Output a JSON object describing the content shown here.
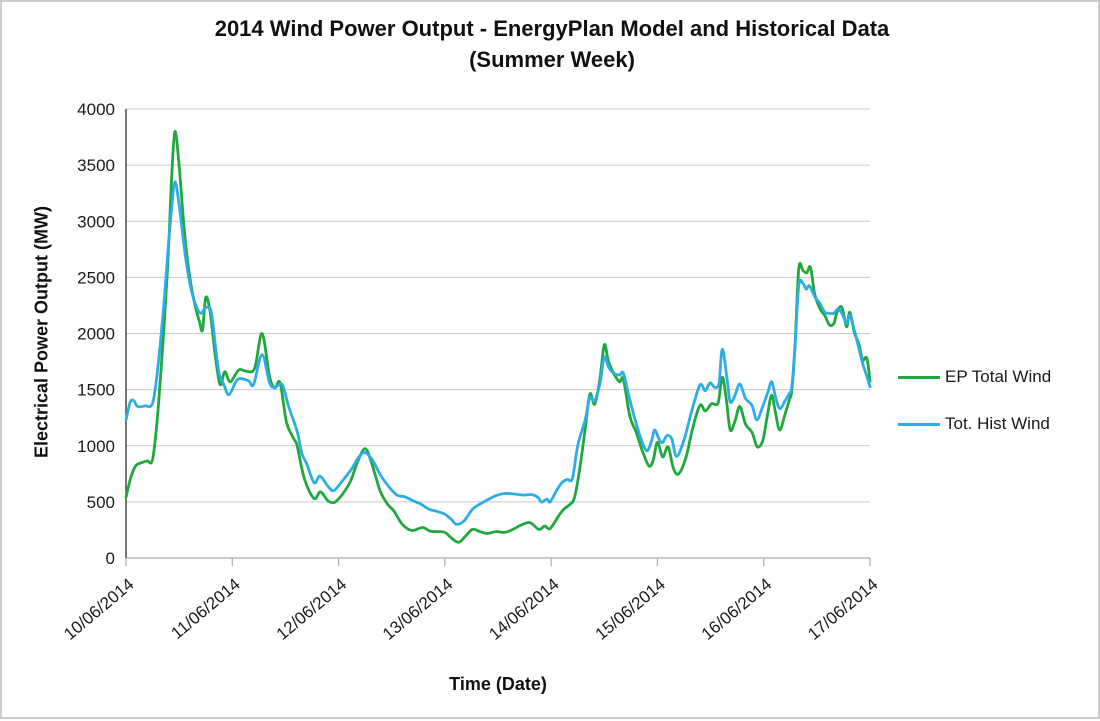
{
  "title": {
    "line1": "2014 Wind Power Output - EnergyPlan Model and Historical Data",
    "line2": "(Summer Week)"
  },
  "legend": [
    {
      "label": "EP Total Wind",
      "color": "#1FA83C"
    },
    {
      "label": "Tot. Hist Wind",
      "color": "#2EACE4"
    }
  ],
  "colors": {
    "gridline": "#C9C9C9",
    "x_axis_line": "#ADADAD",
    "y_axis_line": "#3d3d3d",
    "tick": "#ADADAD",
    "tick_label": "#1a1a1a"
  },
  "chart_data": {
    "type": "line",
    "title": "2014 Wind Power Output - EnergyPlan Model and Historical Data (Summer Week)",
    "xlabel": "Time (Date)",
    "ylabel": "Electrical Power Output (MW)",
    "ylim": [
      0,
      4000
    ],
    "ytick_step": 500,
    "ytick_labels": [
      "0",
      "500",
      "1000",
      "1500",
      "2000",
      "2500",
      "3000",
      "3500",
      "4000"
    ],
    "xlim_days": [
      0,
      7
    ],
    "xtick_labels": [
      "10/06/2014",
      "11/06/2014",
      "12/06/2014",
      "13/06/2014",
      "14/06/2014",
      "15/06/2014",
      "16/06/2014",
      "17/06/2014"
    ],
    "grid": "horizontal",
    "legend_position": "right",
    "series": [
      {
        "name": "EP Total Wind",
        "color": "#1FA83C",
        "points": [
          [
            0.0,
            540
          ],
          [
            0.04,
            700
          ],
          [
            0.09,
            820
          ],
          [
            0.15,
            850
          ],
          [
            0.2,
            865
          ],
          [
            0.25,
            880
          ],
          [
            0.3,
            1300
          ],
          [
            0.36,
            2100
          ],
          [
            0.4,
            2750
          ],
          [
            0.43,
            3400
          ],
          [
            0.46,
            3800
          ],
          [
            0.5,
            3500
          ],
          [
            0.55,
            2900
          ],
          [
            0.6,
            2500
          ],
          [
            0.65,
            2250
          ],
          [
            0.69,
            2110
          ],
          [
            0.72,
            2030
          ],
          [
            0.75,
            2320
          ],
          [
            0.79,
            2200
          ],
          [
            0.84,
            1800
          ],
          [
            0.885,
            1545
          ],
          [
            0.93,
            1660
          ],
          [
            0.98,
            1570
          ],
          [
            1.06,
            1675
          ],
          [
            1.13,
            1665
          ],
          [
            1.21,
            1690
          ],
          [
            1.28,
            2000
          ],
          [
            1.35,
            1620
          ],
          [
            1.4,
            1515
          ],
          [
            1.45,
            1560
          ],
          [
            1.51,
            1210
          ],
          [
            1.58,
            1060
          ],
          [
            1.61,
            1000
          ],
          [
            1.68,
            700
          ],
          [
            1.77,
            530
          ],
          [
            1.83,
            590
          ],
          [
            1.9,
            510
          ],
          [
            1.96,
            495
          ],
          [
            2.03,
            560
          ],
          [
            2.11,
            680
          ],
          [
            2.18,
            860
          ],
          [
            2.25,
            975
          ],
          [
            2.31,
            850
          ],
          [
            2.39,
            600
          ],
          [
            2.46,
            480
          ],
          [
            2.52,
            420
          ],
          [
            2.6,
            300
          ],
          [
            2.69,
            245
          ],
          [
            2.79,
            272
          ],
          [
            2.86,
            240
          ],
          [
            2.94,
            235
          ],
          [
            3.0,
            228
          ],
          [
            3.06,
            180
          ],
          [
            3.13,
            140
          ],
          [
            3.2,
            200
          ],
          [
            3.26,
            255
          ],
          [
            3.33,
            235
          ],
          [
            3.4,
            218
          ],
          [
            3.48,
            235
          ],
          [
            3.56,
            228
          ],
          [
            3.63,
            250
          ],
          [
            3.71,
            290
          ],
          [
            3.8,
            315
          ],
          [
            3.885,
            255
          ],
          [
            3.94,
            285
          ],
          [
            3.99,
            262
          ],
          [
            4.07,
            375
          ],
          [
            4.12,
            435
          ],
          [
            4.18,
            480
          ],
          [
            4.22,
            540
          ],
          [
            4.27,
            800
          ],
          [
            4.32,
            1150
          ],
          [
            4.365,
            1460
          ],
          [
            4.41,
            1370
          ],
          [
            4.46,
            1600
          ],
          [
            4.5,
            1900
          ],
          [
            4.54,
            1750
          ],
          [
            4.6,
            1625
          ],
          [
            4.645,
            1570
          ],
          [
            4.68,
            1590
          ],
          [
            4.74,
            1265
          ],
          [
            4.8,
            1120
          ],
          [
            4.86,
            950
          ],
          [
            4.92,
            820
          ],
          [
            4.96,
            870
          ],
          [
            5.0,
            1030
          ],
          [
            5.05,
            900
          ],
          [
            5.1,
            990
          ],
          [
            5.15,
            800
          ],
          [
            5.2,
            750
          ],
          [
            5.27,
            900
          ],
          [
            5.33,
            1150
          ],
          [
            5.4,
            1360
          ],
          [
            5.45,
            1310
          ],
          [
            5.51,
            1375
          ],
          [
            5.57,
            1380
          ],
          [
            5.61,
            1610
          ],
          [
            5.65,
            1400
          ],
          [
            5.685,
            1140
          ],
          [
            5.73,
            1220
          ],
          [
            5.775,
            1350
          ],
          [
            5.83,
            1190
          ],
          [
            5.89,
            1120
          ],
          [
            5.935,
            995
          ],
          [
            5.975,
            1010
          ],
          [
            6.0,
            1080
          ],
          [
            6.04,
            1300
          ],
          [
            6.075,
            1450
          ],
          [
            6.11,
            1300
          ],
          [
            6.15,
            1140
          ],
          [
            6.2,
            1280
          ],
          [
            6.24,
            1405
          ],
          [
            6.265,
            1500
          ],
          [
            6.295,
            1900
          ],
          [
            6.33,
            2580
          ],
          [
            6.37,
            2560
          ],
          [
            6.405,
            2540
          ],
          [
            6.44,
            2590
          ],
          [
            6.48,
            2350
          ],
          [
            6.53,
            2220
          ],
          [
            6.575,
            2160
          ],
          [
            6.62,
            2075
          ],
          [
            6.66,
            2090
          ],
          [
            6.69,
            2190
          ],
          [
            6.735,
            2235
          ],
          [
            6.78,
            2060
          ],
          [
            6.81,
            2190
          ],
          [
            6.855,
            2000
          ],
          [
            6.895,
            1910
          ],
          [
            6.93,
            1765
          ],
          [
            6.97,
            1780
          ],
          [
            7.0,
            1575
          ]
        ]
      },
      {
        "name": "Tot. Hist Wind",
        "color": "#2EACE4",
        "points": [
          [
            0.0,
            1230
          ],
          [
            0.04,
            1390
          ],
          [
            0.075,
            1400
          ],
          [
            0.11,
            1350
          ],
          [
            0.18,
            1355
          ],
          [
            0.25,
            1380
          ],
          [
            0.3,
            1700
          ],
          [
            0.36,
            2300
          ],
          [
            0.4,
            2800
          ],
          [
            0.43,
            3120
          ],
          [
            0.46,
            3350
          ],
          [
            0.5,
            3150
          ],
          [
            0.55,
            2750
          ],
          [
            0.6,
            2450
          ],
          [
            0.65,
            2270
          ],
          [
            0.7,
            2180
          ],
          [
            0.75,
            2230
          ],
          [
            0.8,
            2200
          ],
          [
            0.84,
            1900
          ],
          [
            0.875,
            1650
          ],
          [
            0.92,
            1545
          ],
          [
            0.97,
            1455
          ],
          [
            1.05,
            1590
          ],
          [
            1.15,
            1580
          ],
          [
            1.2,
            1545
          ],
          [
            1.28,
            1810
          ],
          [
            1.35,
            1560
          ],
          [
            1.4,
            1520
          ],
          [
            1.47,
            1545
          ],
          [
            1.53,
            1350
          ],
          [
            1.61,
            1130
          ],
          [
            1.655,
            930
          ],
          [
            1.7,
            840
          ],
          [
            1.77,
            670
          ],
          [
            1.825,
            730
          ],
          [
            1.9,
            640
          ],
          [
            1.955,
            600
          ],
          [
            2.03,
            680
          ],
          [
            2.12,
            790
          ],
          [
            2.19,
            900
          ],
          [
            2.25,
            940
          ],
          [
            2.32,
            870
          ],
          [
            2.4,
            730
          ],
          [
            2.47,
            640
          ],
          [
            2.55,
            560
          ],
          [
            2.625,
            545
          ],
          [
            2.7,
            510
          ],
          [
            2.775,
            480
          ],
          [
            2.85,
            435
          ],
          [
            2.925,
            415
          ],
          [
            3.0,
            390
          ],
          [
            3.065,
            340
          ],
          [
            3.11,
            300
          ],
          [
            3.18,
            330
          ],
          [
            3.26,
            435
          ],
          [
            3.33,
            480
          ],
          [
            3.405,
            520
          ],
          [
            3.48,
            555
          ],
          [
            3.56,
            575
          ],
          [
            3.65,
            570
          ],
          [
            3.74,
            560
          ],
          [
            3.82,
            565
          ],
          [
            3.875,
            540
          ],
          [
            3.91,
            498
          ],
          [
            3.96,
            525
          ],
          [
            3.99,
            500
          ],
          [
            4.05,
            600
          ],
          [
            4.1,
            670
          ],
          [
            4.15,
            700
          ],
          [
            4.2,
            710
          ],
          [
            4.25,
            1000
          ],
          [
            4.32,
            1230
          ],
          [
            4.365,
            1430
          ],
          [
            4.41,
            1400
          ],
          [
            4.46,
            1560
          ],
          [
            4.5,
            1790
          ],
          [
            4.54,
            1700
          ],
          [
            4.6,
            1640
          ],
          [
            4.645,
            1630
          ],
          [
            4.68,
            1645
          ],
          [
            4.73,
            1450
          ],
          [
            4.78,
            1265
          ],
          [
            4.835,
            1090
          ],
          [
            4.9,
            955
          ],
          [
            4.95,
            1060
          ],
          [
            4.975,
            1140
          ],
          [
            5.02,
            1050
          ],
          [
            5.05,
            1030
          ],
          [
            5.09,
            1090
          ],
          [
            5.135,
            1060
          ],
          [
            5.18,
            905
          ],
          [
            5.25,
            1050
          ],
          [
            5.32,
            1300
          ],
          [
            5.4,
            1540
          ],
          [
            5.45,
            1490
          ],
          [
            5.495,
            1560
          ],
          [
            5.54,
            1520
          ],
          [
            5.58,
            1560
          ],
          [
            5.61,
            1860
          ],
          [
            5.655,
            1600
          ],
          [
            5.685,
            1390
          ],
          [
            5.73,
            1450
          ],
          [
            5.775,
            1550
          ],
          [
            5.83,
            1420
          ],
          [
            5.89,
            1360
          ],
          [
            5.935,
            1230
          ],
          [
            5.99,
            1350
          ],
          [
            6.04,
            1480
          ],
          [
            6.075,
            1570
          ],
          [
            6.11,
            1440
          ],
          [
            6.15,
            1330
          ],
          [
            6.2,
            1400
          ],
          [
            6.24,
            1465
          ],
          [
            6.265,
            1530
          ],
          [
            6.295,
            1900
          ],
          [
            6.33,
            2430
          ],
          [
            6.37,
            2445
          ],
          [
            6.4,
            2395
          ],
          [
            6.43,
            2425
          ],
          [
            6.48,
            2330
          ],
          [
            6.53,
            2265
          ],
          [
            6.575,
            2190
          ],
          [
            6.62,
            2180
          ],
          [
            6.66,
            2180
          ],
          [
            6.7,
            2220
          ],
          [
            6.735,
            2180
          ],
          [
            6.78,
            2090
          ],
          [
            6.81,
            2160
          ],
          [
            6.855,
            2020
          ],
          [
            6.895,
            1870
          ],
          [
            6.93,
            1735
          ],
          [
            6.97,
            1620
          ],
          [
            7.0,
            1525
          ]
        ]
      }
    ]
  }
}
